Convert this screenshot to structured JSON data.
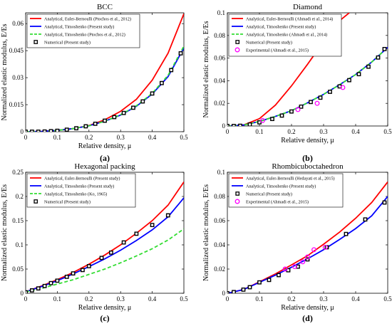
{
  "figure": {
    "panels": [
      "(a)",
      "(b)",
      "(c)",
      "(d)"
    ]
  },
  "colors": {
    "euler_bernoulli": "#ff0000",
    "timoshenko_present": "#0000ff",
    "timoshenko_reference": "#33dd33",
    "numerical_marker": "#000000",
    "experimental_marker": "#ff00ff"
  },
  "chart_data": [
    {
      "type": "line",
      "title": "BCC",
      "xlabel": "Relative density, μ",
      "ylabel": "Normalized elastic modulus, E/Es",
      "xlim": [
        0,
        0.5
      ],
      "ylim": [
        0,
        0.066
      ],
      "xticks": [
        "0",
        "0.1",
        "0.2",
        "0.3",
        "0.4",
        "0.5"
      ],
      "yticks": [
        "0",
        "0.015",
        "0.03",
        "0.045",
        "0.06"
      ],
      "xtick_values": [
        0,
        0.1,
        0.2,
        0.3,
        0.4,
        0.5
      ],
      "ytick_values": [
        0,
        0.015,
        0.03,
        0.045,
        0.06
      ],
      "grid": false,
      "legend_position": "top-left",
      "series": [
        {
          "name": "Analytical, Euler-Bernoulli (Ptochos et al., 2012)",
          "style": "line",
          "color_key": "euler_bernoulli",
          "x": [
            0,
            0.05,
            0.1,
            0.15,
            0.2,
            0.25,
            0.3,
            0.35,
            0.4,
            0.45,
            0.5
          ],
          "values": [
            0,
            0.0001,
            0.0007,
            0.0017,
            0.0034,
            0.0066,
            0.0113,
            0.018,
            0.0286,
            0.0436,
            0.0655
          ]
        },
        {
          "name": "Analytical, Timoshenko (Present study)",
          "style": "line",
          "color_key": "timoshenko_present",
          "x": [
            0,
            0.05,
            0.1,
            0.15,
            0.2,
            0.25,
            0.3,
            0.35,
            0.4,
            0.45,
            0.5
          ],
          "values": [
            0,
            0.0001,
            0.0007,
            0.0017,
            0.0033,
            0.0058,
            0.0092,
            0.0141,
            0.0209,
            0.0306,
            0.0465
          ]
        },
        {
          "name": "Analytical, Timoshenko (Ptochos et al., 2012)",
          "style": "dashed",
          "color_key": "timoshenko_reference",
          "x": [
            0,
            0.05,
            0.1,
            0.15,
            0.2,
            0.25,
            0.3,
            0.35,
            0.4,
            0.45,
            0.5
          ],
          "values": [
            0,
            0.0001,
            0.0007,
            0.0017,
            0.0033,
            0.0058,
            0.0094,
            0.0144,
            0.0213,
            0.0313,
            0.0475
          ]
        },
        {
          "name": "Numerical (Present study)",
          "style": "marker",
          "color_key": "numerical_marker",
          "x": [
            0.0,
            0.02,
            0.04,
            0.06,
            0.08,
            0.1,
            0.13,
            0.16,
            0.19,
            0.22,
            0.25,
            0.28,
            0.31,
            0.34,
            0.37,
            0.4,
            0.43,
            0.46,
            0.49
          ],
          "values": [
            0,
            0,
            0,
            0.0001,
            0.0003,
            0.0005,
            0.0011,
            0.0019,
            0.003,
            0.0044,
            0.0061,
            0.0081,
            0.0104,
            0.0133,
            0.0168,
            0.0212,
            0.027,
            0.0342,
            0.0435
          ]
        }
      ]
    },
    {
      "type": "line",
      "title": "Diamond",
      "xlabel": "Relative density, μ",
      "ylabel": "Normalized elastic modulus, E/Es",
      "xlim": [
        0,
        0.5
      ],
      "ylim": [
        0,
        0.1
      ],
      "xticks": [
        "0",
        "0.1",
        "0.2",
        "0.3",
        "0.4",
        "0.5"
      ],
      "yticks": [
        "0",
        "0.02",
        "0.04",
        "0.06",
        "0.08",
        "0.1"
      ],
      "xtick_values": [
        0,
        0.1,
        0.2,
        0.3,
        0.4,
        0.5
      ],
      "ytick_values": [
        0,
        0.02,
        0.04,
        0.06,
        0.08,
        0.1
      ],
      "grid": false,
      "legend_position": "top-left",
      "series": [
        {
          "name": "Analytical, Euler-Bernoulli (Ahmadi et al., 2014)",
          "style": "line",
          "color_key": "euler_bernoulli",
          "x": [
            0,
            0.05,
            0.1,
            0.15,
            0.2,
            0.25,
            0.3,
            0.35,
            0.38
          ],
          "values": [
            0,
            0.0008,
            0.0065,
            0.0185,
            0.0355,
            0.0545,
            0.0745,
            0.093,
            0.1
          ]
        },
        {
          "name": "Analytical, Timoshenko (Present study)",
          "style": "line",
          "color_key": "timoshenko_present",
          "x": [
            0,
            0.05,
            0.1,
            0.15,
            0.2,
            0.25,
            0.3,
            0.35,
            0.4,
            0.45,
            0.5
          ],
          "values": [
            0,
            0.0008,
            0.004,
            0.0085,
            0.0135,
            0.0205,
            0.028,
            0.0365,
            0.0455,
            0.0565,
            0.0695
          ]
        },
        {
          "name": "Analytical, Timoshenko (Ahmadi et al., 2014)",
          "style": "dashed",
          "color_key": "timoshenko_reference",
          "x": [
            0,
            0.05,
            0.1,
            0.15,
            0.2,
            0.25,
            0.3,
            0.35,
            0.4,
            0.45,
            0.5
          ],
          "values": [
            0,
            0.0008,
            0.004,
            0.0085,
            0.0135,
            0.0205,
            0.028,
            0.0365,
            0.0455,
            0.0565,
            0.0695
          ]
        },
        {
          "name": "Numerical (Present study)",
          "style": "marker",
          "color_key": "numerical_marker",
          "x": [
            0.0,
            0.02,
            0.04,
            0.07,
            0.1,
            0.14,
            0.17,
            0.2,
            0.23,
            0.26,
            0.29,
            0.32,
            0.35,
            0.38,
            0.41,
            0.44,
            0.47,
            0.49
          ],
          "values": [
            0,
            0,
            0.0002,
            0.0013,
            0.0032,
            0.0062,
            0.0092,
            0.0128,
            0.0171,
            0.0212,
            0.025,
            0.0302,
            0.035,
            0.0405,
            0.0458,
            0.0524,
            0.0605,
            0.068
          ]
        },
        {
          "name": "Experimental (Ahmadi et al., 2015)",
          "style": "circle",
          "color_key": "experimental_marker",
          "x": [
            0.11,
            0.22,
            0.28,
            0.36
          ],
          "values": [
            0.0048,
            0.0145,
            0.02,
            0.034
          ]
        }
      ]
    },
    {
      "type": "line",
      "title": "Hexagonal packing",
      "xlabel": "Relative density, μ",
      "ylabel": "Normalized elastic modulus, E/Es",
      "xlim": [
        0,
        0.5
      ],
      "ylim": [
        0,
        0.25
      ],
      "xticks": [
        "0",
        "0.1",
        "0.2",
        "0.3",
        "0.4",
        "0.5"
      ],
      "yticks": [
        "0",
        "0.05",
        "0.1",
        "0.15",
        "0.2",
        "0.25"
      ],
      "xtick_values": [
        0,
        0.1,
        0.2,
        0.3,
        0.4,
        0.5
      ],
      "ytick_values": [
        0,
        0.05,
        0.1,
        0.15,
        0.2,
        0.25
      ],
      "grid": false,
      "legend_position": "top-left",
      "series": [
        {
          "name": "Analytical, Euler-Bernoulli (Present study)",
          "style": "line",
          "color_key": "euler_bernoulli",
          "x": [
            0,
            0.05,
            0.1,
            0.15,
            0.2,
            0.25,
            0.3,
            0.35,
            0.4,
            0.45,
            0.5
          ],
          "values": [
            0.003,
            0.015,
            0.028,
            0.043,
            0.06,
            0.079,
            0.1,
            0.124,
            0.15,
            0.182,
            0.23
          ]
        },
        {
          "name": "Analytical, Timoshenko (Present study)",
          "style": "line",
          "color_key": "timoshenko_present",
          "x": [
            0,
            0.05,
            0.1,
            0.15,
            0.2,
            0.25,
            0.3,
            0.35,
            0.4,
            0.45,
            0.5
          ],
          "values": [
            0.003,
            0.014,
            0.026,
            0.04,
            0.055,
            0.071,
            0.089,
            0.109,
            0.131,
            0.158,
            0.197
          ]
        },
        {
          "name": "Analytical, Timoshenko (Ko, 1965)",
          "style": "dashed",
          "color_key": "timoshenko_reference",
          "x": [
            0,
            0.05,
            0.1,
            0.15,
            0.2,
            0.25,
            0.3,
            0.35,
            0.4,
            0.45,
            0.5
          ],
          "values": [
            0.003,
            0.01,
            0.019,
            0.028,
            0.039,
            0.05,
            0.063,
            0.077,
            0.092,
            0.11,
            0.133
          ]
        },
        {
          "name": "Numerical (Present study)",
          "style": "marker",
          "color_key": "numerical_marker",
          "x": [
            0.0,
            0.02,
            0.04,
            0.06,
            0.08,
            0.1,
            0.13,
            0.15,
            0.18,
            0.2,
            0.24,
            0.27,
            0.31,
            0.35,
            0.4,
            0.45
          ],
          "values": [
            0.002,
            0.006,
            0.01,
            0.015,
            0.021,
            0.026,
            0.034,
            0.041,
            0.048,
            0.056,
            0.073,
            0.084,
            0.105,
            0.123,
            0.141,
            0.161
          ]
        }
      ]
    },
    {
      "type": "line",
      "title": "Rhombicuboctahedron",
      "xlabel": "Relative density, μ",
      "ylabel": "Normalized elastic modulus, E/Es",
      "xlim": [
        0,
        0.5
      ],
      "ylim": [
        0,
        0.1
      ],
      "xticks": [
        "0",
        "0.1",
        "0.2",
        "0.3",
        "0.4",
        "0.5"
      ],
      "yticks": [
        "0",
        "0.02",
        "0.04",
        "0.06",
        "0.08",
        "0.1"
      ],
      "xtick_values": [
        0,
        0.1,
        0.2,
        0.3,
        0.4,
        0.5
      ],
      "ytick_values": [
        0,
        0.02,
        0.04,
        0.06,
        0.08,
        0.1
      ],
      "grid": false,
      "legend_position": "top-left",
      "series": [
        {
          "name": "Analytical, Euler-Bernoulli (Hedayati et al., 2015)",
          "style": "line",
          "color_key": "euler_bernoulli",
          "x": [
            0,
            0.05,
            0.1,
            0.15,
            0.2,
            0.25,
            0.3,
            0.35,
            0.4,
            0.45,
            0.5
          ],
          "values": [
            0,
            0.003,
            0.0095,
            0.016,
            0.0235,
            0.031,
            0.0405,
            0.0505,
            0.062,
            0.075,
            0.092
          ]
        },
        {
          "name": "Analytical, Timoshenko (Present study)",
          "style": "line",
          "color_key": "timoshenko_present",
          "x": [
            0,
            0.05,
            0.1,
            0.15,
            0.2,
            0.25,
            0.3,
            0.35,
            0.4,
            0.45,
            0.5
          ],
          "values": [
            0,
            0.003,
            0.009,
            0.015,
            0.0215,
            0.0285,
            0.036,
            0.0445,
            0.0535,
            0.064,
            0.08
          ]
        },
        {
          "name": "Numerical (Present study)",
          "style": "marker",
          "color_key": "numerical_marker",
          "x": [
            0.0,
            0.02,
            0.05,
            0.07,
            0.1,
            0.13,
            0.16,
            0.19,
            0.22,
            0.25,
            0.31,
            0.37,
            0.43,
            0.49
          ],
          "values": [
            0,
            0.001,
            0.003,
            0.005,
            0.009,
            0.011,
            0.015,
            0.019,
            0.022,
            0.028,
            0.038,
            0.049,
            0.061,
            0.075
          ]
        },
        {
          "name": "Experimental (Ahmadi et al., 2015)",
          "style": "circle",
          "color_key": "experimental_marker",
          "x": [
            0.18,
            0.21,
            0.235,
            0.25,
            0.27,
            0.305
          ],
          "values": [
            0.02,
            0.022,
            0.026,
            0.03,
            0.036,
            0.038
          ]
        }
      ]
    }
  ]
}
